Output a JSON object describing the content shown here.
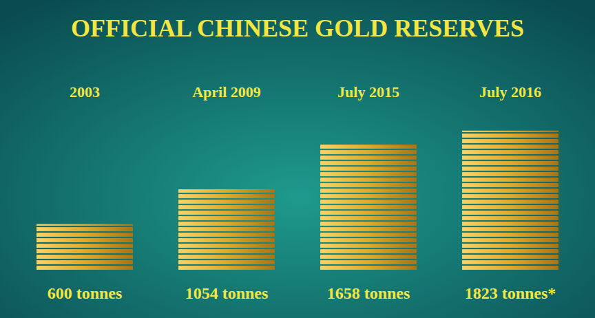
{
  "chart_data": {
    "type": "bar",
    "title": "OFFICIAL CHINESE GOLD RESERVES",
    "categories": [
      "2003",
      "April 2009",
      "July 2015",
      "July 2016"
    ],
    "values": [
      600,
      1054,
      1658,
      1823
    ],
    "value_labels": [
      "600 tonnes",
      "1054 tonnes",
      "1658 tonnes",
      "1823 tonnes*"
    ],
    "data_labels": true,
    "color": "#e0aa2c",
    "ylim": [
      0,
      2000
    ],
    "grid": false,
    "tick_labels": "x"
  }
}
